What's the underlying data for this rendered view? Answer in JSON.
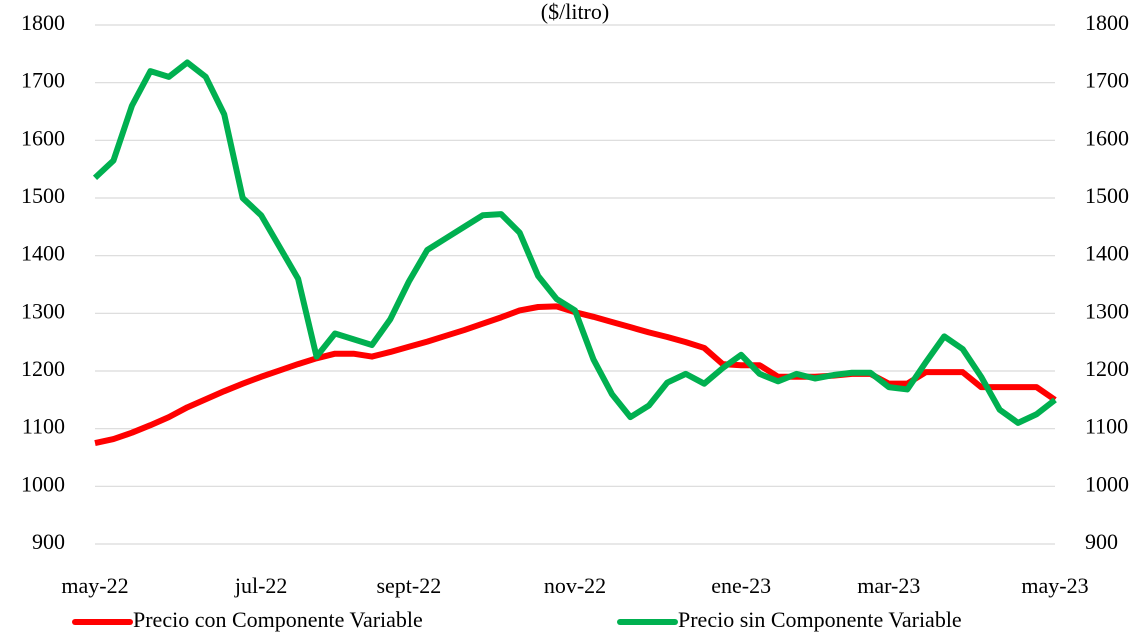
{
  "chart_data": {
    "type": "line",
    "title": "($/litro)",
    "categories": [
      "may-22",
      null,
      null,
      null,
      null,
      null,
      null,
      null,
      null,
      "jul-22",
      null,
      null,
      null,
      null,
      null,
      null,
      null,
      "sept-22",
      null,
      null,
      null,
      null,
      null,
      null,
      null,
      null,
      "nov-22",
      null,
      null,
      null,
      null,
      null,
      null,
      null,
      null,
      "ene-23",
      null,
      null,
      null,
      null,
      null,
      null,
      null,
      "mar-23",
      null,
      null,
      null,
      null,
      null,
      null,
      null,
      null,
      "may-23"
    ],
    "series": [
      {
        "name": "Precio con Componente Variable",
        "color": "#ff0000",
        "values": [
          1075,
          1082,
          1093,
          1106,
          1120,
          1137,
          1151,
          1165,
          1178,
          1190,
          1201,
          1212,
          1222,
          1230,
          1230,
          1225,
          1233,
          1242,
          1251,
          1261,
          1271,
          1282,
          1293,
          1305,
          1311,
          1312,
          1302,
          1294,
          1285,
          1276,
          1267,
          1259,
          1250,
          1240,
          1212,
          1210,
          1210,
          1190,
          1190,
          1190,
          1192,
          1195,
          1195,
          1178,
          1178,
          1198,
          1198,
          1198,
          1172,
          1172,
          1172,
          1172,
          1150
        ]
      },
      {
        "name": "Precio sin Componente Variable",
        "color": "#00b050",
        "values": [
          1535,
          1565,
          1660,
          1720,
          1710,
          1735,
          1710,
          1645,
          1500,
          1470,
          1415,
          1360,
          1225,
          1265,
          1255,
          1245,
          1290,
          1355,
          1410,
          1430,
          1450,
          1470,
          1472,
          1440,
          1365,
          1325,
          1305,
          1220,
          1160,
          1120,
          1140,
          1180,
          1195,
          1178,
          1205,
          1228,
          1195,
          1182,
          1195,
          1187,
          1193,
          1197,
          1197,
          1172,
          1168,
          1215,
          1260,
          1238,
          1190,
          1133,
          1110,
          1125,
          1150
        ]
      }
    ],
    "ylim": [
      900,
      1800
    ],
    "yticks": [
      900,
      1000,
      1100,
      1200,
      1300,
      1400,
      1500,
      1600,
      1700,
      1800
    ],
    "y2lim": [
      900,
      1800
    ],
    "y2ticks": [
      900,
      1000,
      1100,
      1200,
      1300,
      1400,
      1500,
      1600,
      1700,
      1800
    ],
    "grid": true,
    "legend": "bottom"
  }
}
